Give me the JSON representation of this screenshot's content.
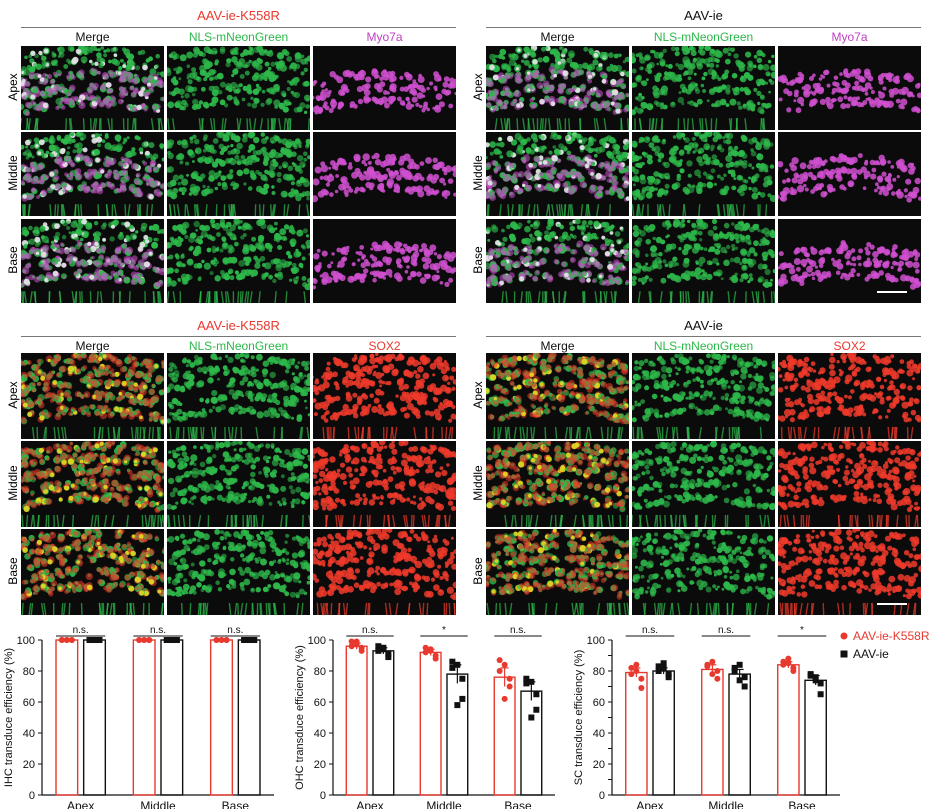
{
  "colors": {
    "red": "#e8392f",
    "green": "#2db84a",
    "magenta": "#c040c0",
    "black": "#111111"
  },
  "panels": [
    {
      "title": "AAV-ie-K558R",
      "title_color": "#e8392f",
      "columns": [
        {
          "label": "Merge",
          "color": "#111111"
        },
        {
          "label": "NLS-mNeonGreen",
          "color": "#2db84a"
        },
        {
          "label": "Myo7a",
          "color": "#c040c0"
        }
      ],
      "rows": [
        "Apex",
        "Middle",
        "Base"
      ],
      "marker": "magenta"
    },
    {
      "title": "AAV-ie",
      "title_color": "#111111",
      "columns": [
        {
          "label": "Merge",
          "color": "#111111"
        },
        {
          "label": "NLS-mNeonGreen",
          "color": "#2db84a"
        },
        {
          "label": "Myo7a",
          "color": "#c040c0"
        }
      ],
      "rows": [
        "Apex",
        "Middle",
        "Base"
      ],
      "marker": "magenta"
    },
    {
      "title": "AAV-ie-K558R",
      "title_color": "#e8392f",
      "columns": [
        {
          "label": "Merge",
          "color": "#111111"
        },
        {
          "label": "NLS-mNeonGreen",
          "color": "#2db84a"
        },
        {
          "label": "SOX2",
          "color": "#e8392f"
        }
      ],
      "rows": [
        "Apex",
        "Middle",
        "Base"
      ],
      "marker": "red"
    },
    {
      "title": "AAV-ie",
      "title_color": "#111111",
      "columns": [
        {
          "label": "Merge",
          "color": "#111111"
        },
        {
          "label": "NLS-mNeonGreen",
          "color": "#2db84a"
        },
        {
          "label": "SOX2",
          "color": "#e8392f"
        }
      ],
      "rows": [
        "Apex",
        "Middle",
        "Base"
      ],
      "marker": "red"
    }
  ],
  "chart_data": [
    {
      "type": "bar",
      "ylabel": "IHC transduce efficiency (%)",
      "ylim": [
        0,
        100
      ],
      "yticks": [
        0,
        20,
        40,
        60,
        80,
        100
      ],
      "categories": [
        "Apex",
        "Middle",
        "Base"
      ],
      "significance": [
        "n.s.",
        "n.s.",
        "n.s."
      ],
      "series": [
        {
          "name": "AAV-ie-K558R",
          "color": "#e8392f",
          "marker": "circle",
          "filled": false,
          "values": [
            100,
            100,
            100
          ],
          "sem": [
            0,
            0,
            0
          ],
          "points": [
            [
              100,
              100,
              100,
              100,
              100,
              100
            ],
            [
              100,
              100,
              100,
              100,
              100,
              100
            ],
            [
              100,
              100,
              100,
              100,
              100,
              100
            ]
          ]
        },
        {
          "name": "AAV-ie",
          "color": "#111111",
          "marker": "square",
          "filled": true,
          "values": [
            100,
            100,
            100
          ],
          "sem": [
            0,
            0,
            0
          ],
          "points": [
            [
              100,
              100,
              100,
              100,
              100,
              100
            ],
            [
              100,
              100,
              100,
              100,
              100,
              100
            ],
            [
              100,
              100,
              100,
              100,
              100,
              100
            ]
          ]
        }
      ]
    },
    {
      "type": "bar",
      "ylabel": "OHC transduce efficiency (%)",
      "ylim": [
        0,
        100
      ],
      "yticks": [
        0,
        20,
        40,
        60,
        80,
        100
      ],
      "categories": [
        "Apex",
        "Middle",
        "Base"
      ],
      "significance": [
        "n.s.",
        "*",
        "n.s."
      ],
      "series": [
        {
          "name": "AAV-ie-K558R",
          "color": "#e8392f",
          "marker": "circle",
          "filled": false,
          "values": [
            96,
            92,
            76
          ],
          "sem": [
            2,
            2,
            6
          ],
          "points": [
            [
              99,
              97,
              95,
              93,
              99,
              96
            ],
            [
              95,
              93,
              90,
              88,
              94,
              92
            ],
            [
              87,
              84,
              75,
              70,
              62,
              80
            ]
          ]
        },
        {
          "name": "AAV-ie",
          "color": "#111111",
          "marker": "square",
          "filled": true,
          "values": [
            93,
            78,
            67
          ],
          "sem": [
            2,
            6,
            6
          ],
          "points": [
            [
              96,
              94,
              91,
              89,
              95,
              93
            ],
            [
              86,
              84,
              75,
              62,
              58,
              82
            ],
            [
              75,
              73,
              65,
              55,
              50,
              72
            ]
          ]
        }
      ]
    },
    {
      "type": "bar",
      "ylabel": "SC transduce efficiency (%)",
      "ylim": [
        0,
        100
      ],
      "yticks": [
        0,
        10,
        20,
        30,
        40,
        50,
        60,
        70,
        80,
        90,
        100
      ],
      "categories": [
        "Apex",
        "Middle",
        "Base"
      ],
      "significance": [
        "n.s.",
        "n.s.",
        "*"
      ],
      "series": [
        {
          "name": "AAV-ie-K558R",
          "color": "#e8392f",
          "marker": "circle",
          "filled": false,
          "values": [
            79,
            81,
            84
          ],
          "sem": [
            3,
            3,
            2
          ],
          "points": [
            [
              82,
              84,
              75,
              69,
              80,
              78
            ],
            [
              84,
              86,
              80,
              75,
              78,
              83
            ],
            [
              86,
              88,
              82,
              80,
              85,
              84
            ]
          ]
        },
        {
          "name": "AAV-ie",
          "color": "#111111",
          "marker": "square",
          "filled": true,
          "values": [
            80,
            78,
            74
          ],
          "sem": [
            2,
            3,
            3
          ],
          "points": [
            [
              83,
              85,
              78,
              76,
              82,
              80
            ],
            [
              82,
              84,
              76,
              70,
              74,
              80
            ],
            [
              78,
              76,
              72,
              65,
              74,
              77
            ]
          ]
        }
      ],
      "legend": {
        "position": "top-right",
        "items": [
          "AAV-ie-K558R",
          "AAV-ie"
        ]
      }
    }
  ]
}
